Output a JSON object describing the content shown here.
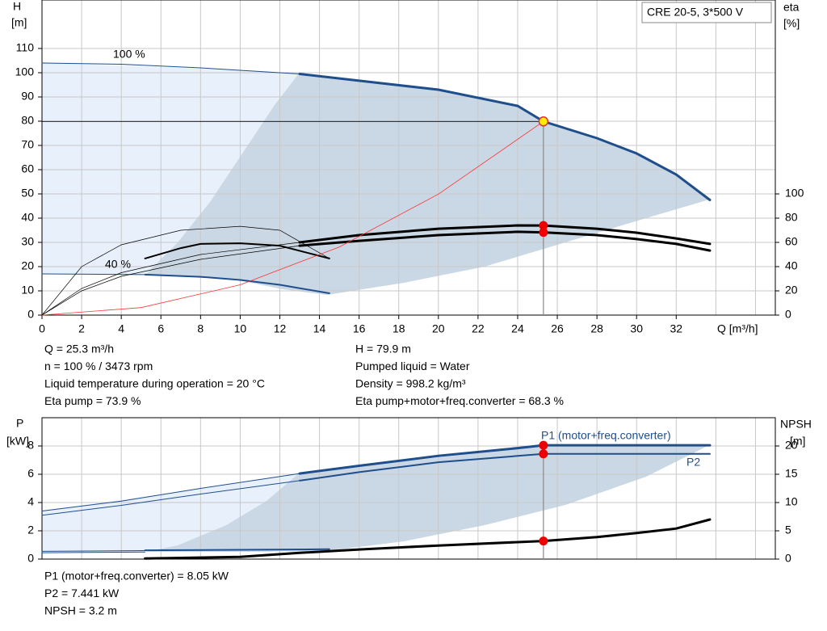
{
  "model": "CRE 20-5, 3*500 V",
  "chart_data": [
    {
      "type": "line",
      "ylabel": "H",
      "yunit": "[m]",
      "y2label": "eta",
      "y2unit": "[%]",
      "xlabel": "Q [m³/h]",
      "annotations": [
        "100 %",
        "40 %"
      ],
      "xlim": [
        0,
        37
      ],
      "xticks": [
        0,
        2,
        4,
        6,
        8,
        10,
        12,
        14,
        16,
        18,
        20,
        22,
        24,
        26,
        28,
        30,
        32
      ],
      "ylim": [
        0,
        130
      ],
      "yticks": [
        0,
        10,
        20,
        30,
        40,
        50,
        60,
        70,
        80,
        90,
        100,
        110
      ],
      "y2lim": [
        0,
        260
      ],
      "y2ticks": [
        0,
        20,
        40,
        60,
        80,
        100
      ],
      "grid": true,
      "series": [
        {
          "color": "#1f4e8c",
          "width": 1,
          "x": [
            0,
            4,
            8,
            13
          ],
          "values": [
            104,
            103.5,
            102,
            99.5
          ]
        },
        {
          "color": "#1f4e8c",
          "width": 3,
          "x": [
            13,
            16,
            20,
            24,
            25.3,
            28,
            30,
            32,
            33.7
          ],
          "values": [
            99.5,
            96.7,
            93,
            86.3,
            79.9,
            73,
            66.7,
            58,
            47.5
          ]
        },
        {
          "color": "#1f4e8c",
          "width": 1,
          "x": [
            0,
            5.2
          ],
          "values": [
            17,
            16.7
          ]
        },
        {
          "color": "#1f4e8c",
          "width": 2,
          "x": [
            5.2,
            8,
            10,
            12,
            14.5
          ],
          "values": [
            16.7,
            15.8,
            14.5,
            12.5,
            9
          ]
        },
        {
          "color": "#000000",
          "width": 3,
          "axis": "y2",
          "x": [
            13,
            16,
            20,
            24,
            25.3,
            28,
            30,
            32,
            33.7
          ],
          "values": [
            60,
            66,
            71.3,
            74,
            73.9,
            71.3,
            68,
            63.3,
            58.7
          ]
        },
        {
          "color": "#000000",
          "width": 3,
          "axis": "y2",
          "x": [
            13,
            16,
            20,
            24,
            25.3,
            28,
            30,
            32,
            33.7
          ],
          "values": [
            57.3,
            61.3,
            66,
            68.7,
            68.3,
            66,
            62.7,
            58.7,
            53.3
          ]
        },
        {
          "color": "#000000",
          "width": 2,
          "axis": "y2",
          "x": [
            5.2,
            7,
            8,
            10,
            12,
            14.5
          ],
          "values": [
            46.7,
            55.3,
            58.7,
            59.3,
            57.3,
            46.7
          ]
        },
        {
          "color": "#000000",
          "width": 0.7,
          "axis": "y2",
          "x": [
            0,
            2,
            4,
            8,
            13
          ],
          "values": [
            0,
            22,
            35,
            50,
            60
          ]
        },
        {
          "color": "#000000",
          "width": 0.7,
          "axis": "y2",
          "x": [
            0,
            2,
            4,
            8,
            13
          ],
          "values": [
            0,
            20,
            32,
            46,
            57.3
          ]
        },
        {
          "color": "#000000",
          "width": 0.7,
          "axis": "y2",
          "x": [
            0,
            2,
            4,
            7,
            10,
            12,
            14.5
          ],
          "values": [
            0,
            40,
            58,
            70,
            73.3,
            70,
            46.7
          ]
        },
        {
          "color": "#ff3333",
          "width": 0.8,
          "x": [
            0,
            5,
            10,
            15,
            20,
            25.3
          ],
          "values": [
            0,
            3.1,
            12.5,
            28.1,
            49.9,
            79.9
          ]
        }
      ],
      "points": [
        {
          "color": "#ffee00",
          "guides": "hv",
          "x": [
            25.3
          ],
          "values": [
            79.9
          ]
        },
        {
          "color": "#ee0000",
          "axis": "y2",
          "x": [
            25.3
          ],
          "values": [
            73.9
          ]
        },
        {
          "color": "#ee0000",
          "axis": "y2",
          "x": [
            25.3
          ],
          "values": [
            68.3
          ]
        }
      ]
    },
    {
      "type": "line",
      "ylabel": "P",
      "yunit": "[kW]",
      "y2label": "NPSH",
      "y2unit": "[m]",
      "annotations": [
        "P1 (motor+freq.converter)",
        "P2"
      ],
      "xlim": [
        0,
        37
      ],
      "ylim": [
        0,
        10
      ],
      "yticks": [
        0,
        2,
        4,
        6,
        8
      ],
      "y2lim": [
        0,
        25
      ],
      "y2ticks": [
        0,
        5,
        10,
        15,
        20
      ],
      "grid": true,
      "series": [
        {
          "color": "#1f4e8c",
          "width": 1,
          "x": [
            0,
            4,
            8,
            13
          ],
          "values": [
            3.4,
            4.1,
            5.0,
            6.05
          ]
        },
        {
          "color": "#1f4e8c",
          "width": 3,
          "x": [
            13,
            16,
            20,
            24,
            25.3,
            28,
            33.7
          ],
          "values": [
            6.05,
            6.6,
            7.3,
            7.85,
            8.05,
            8.05,
            8.05
          ]
        },
        {
          "color": "#1f4e8c",
          "width": 1,
          "x": [
            0,
            4,
            8,
            13
          ],
          "values": [
            3.1,
            3.8,
            4.6,
            5.55
          ]
        },
        {
          "color": "#1f4e8c",
          "width": 2,
          "x": [
            13,
            16,
            20,
            24,
            25.3,
            28,
            33.7
          ],
          "values": [
            5.55,
            6.15,
            6.85,
            7.3,
            7.441,
            7.441,
            7.441
          ]
        },
        {
          "color": "#1f4e8c",
          "width": 1,
          "x": [
            0,
            5.2
          ],
          "values": [
            0.55,
            0.6
          ]
        },
        {
          "color": "#1f4e8c",
          "width": 2,
          "x": [
            5.2,
            10,
            14.5
          ],
          "values": [
            0.62,
            0.66,
            0.7
          ]
        },
        {
          "color": "#1f4e8c",
          "width": 1,
          "x": [
            0,
            5.2
          ],
          "values": [
            0.45,
            0.5
          ]
        },
        {
          "color": "#000000",
          "width": 3,
          "axis": "y2",
          "x": [
            5.2,
            10,
            13,
            16,
            20,
            25.3,
            28,
            30,
            32,
            33.7
          ],
          "values": [
            0.1,
            0.4,
            1.1,
            1.7,
            2.4,
            3.2,
            3.9,
            4.6,
            5.4,
            7
          ]
        }
      ],
      "points": [
        {
          "color": "#ee0000",
          "guides": "v",
          "x": [
            25.3
          ],
          "values": [
            8.05
          ]
        },
        {
          "color": "#ee0000",
          "x": [
            25.3
          ],
          "values": [
            7.441
          ]
        },
        {
          "color": "#ee0000",
          "axis": "y2",
          "x": [
            25.3
          ],
          "values": [
            3.2
          ]
        }
      ]
    }
  ],
  "info_left": [
    "Q = 25.3 m³/h",
    "n = 100 % / 3473 rpm",
    "Liquid temperature during operation = 20 °C",
    "Eta pump = 73.9 %"
  ],
  "info_right": [
    "H = 79.9 m",
    "Pumped liquid = Water",
    "Density = 998.2 kg/m³",
    "Eta pump+motor+freq.converter = 68.3 %"
  ],
  "info_bottom": [
    "P1 (motor+freq.converter) = 8.05 kW",
    "P2 = 7.441 kW",
    "NPSH = 3.2 m"
  ]
}
